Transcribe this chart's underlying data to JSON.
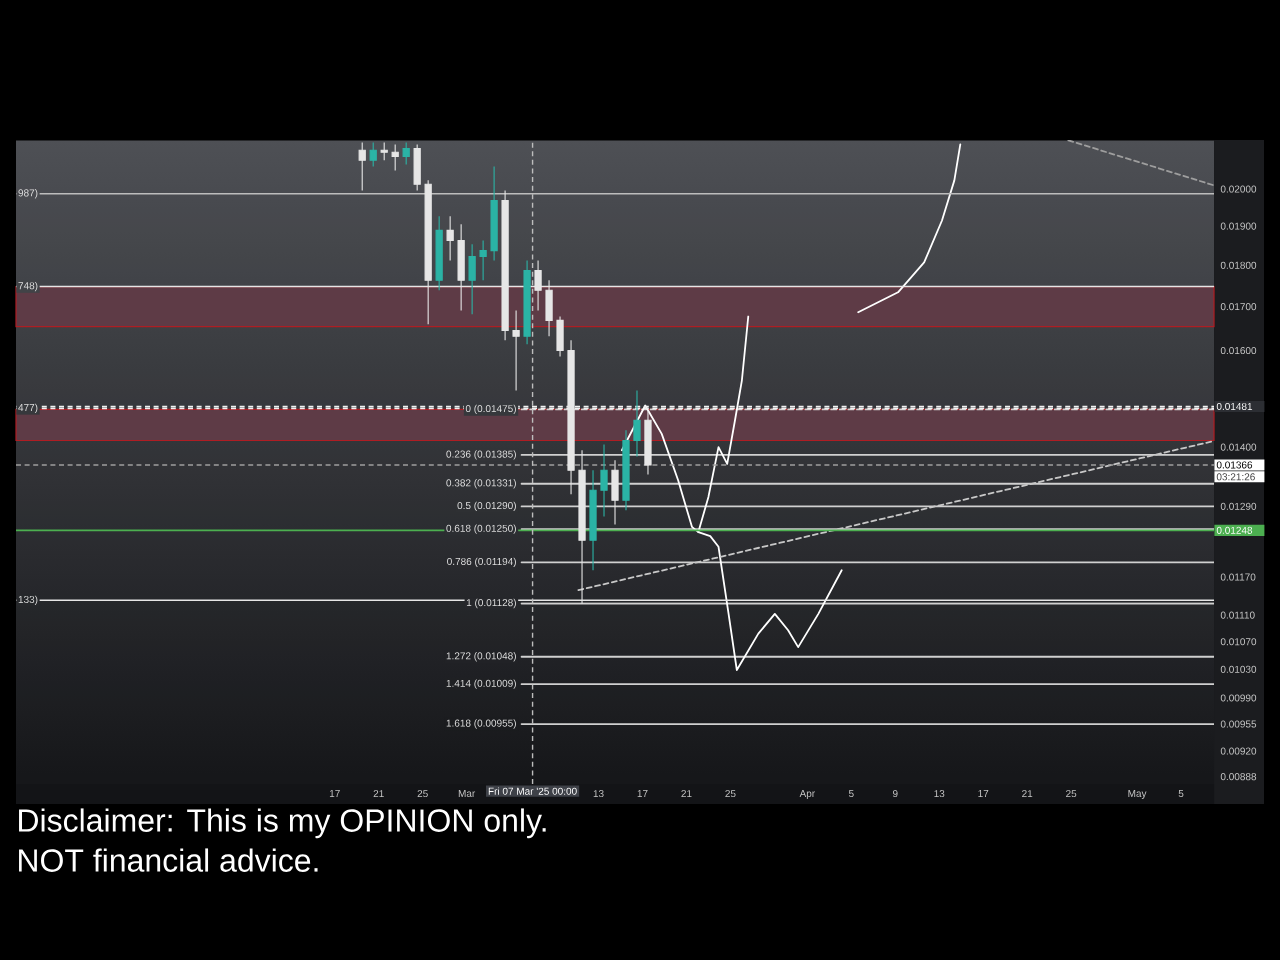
{
  "chart_data": {
    "type": "candlestick",
    "x": [
      "2025-02-19T12:00",
      "2025-02-20T12:00",
      "2025-02-21T12:00",
      "2025-02-22T12:00",
      "2025-02-23T12:00",
      "2025-02-24T12:00",
      "2025-02-25T12:00",
      "2025-02-26T12:00",
      "2025-02-27T12:00",
      "2025-02-28T12:00",
      "2025-03-01T12:00",
      "2025-03-02T12:00",
      "2025-03-03T12:00",
      "2025-03-04T12:00",
      "2025-03-05T12:00",
      "2025-03-06T12:00",
      "2025-03-07T12:00",
      "2025-03-08T12:00",
      "2025-03-09T12:00",
      "2025-03-10T12:00",
      "2025-03-11T12:00",
      "2025-03-12T12:00",
      "2025-03-13T12:00",
      "2025-03-14T12:00",
      "2025-03-15T12:00",
      "2025-03-16T12:00",
      "2025-03-17T12:00"
    ],
    "ohlc": [
      [
        0.0211,
        0.02133,
        0.01996,
        0.02081
      ],
      [
        0.02081,
        0.02133,
        0.02063,
        0.0211
      ],
      [
        0.0211,
        0.02133,
        0.02081,
        0.02104
      ],
      [
        0.02104,
        0.02127,
        0.02052,
        0.02092
      ],
      [
        0.02092,
        0.02133,
        0.02069,
        0.02115
      ],
      [
        0.02115,
        0.02127,
        0.01996,
        0.02013
      ],
      [
        0.02013,
        0.02024,
        0.01659,
        0.01763
      ],
      [
        0.01763,
        0.01926,
        0.01739,
        0.01889
      ],
      [
        0.01889,
        0.01926,
        0.01812,
        0.01863
      ],
      [
        0.01863,
        0.01905,
        0.01691,
        0.01763
      ],
      [
        0.01763,
        0.01853,
        0.01682,
        0.01822
      ],
      [
        0.01822,
        0.01863,
        0.01763,
        0.01837
      ],
      [
        0.01837,
        0.02063,
        0.01812,
        0.01969
      ],
      [
        0.01969,
        0.01996,
        0.01623,
        0.01645
      ],
      [
        0.01645,
        0.01691,
        0.01514,
        0.01632
      ],
      [
        0.01632,
        0.01812,
        0.01614,
        0.01787
      ],
      [
        0.01787,
        0.01812,
        0.01691,
        0.01739
      ],
      [
        0.01739,
        0.01763,
        0.01632,
        0.01668
      ],
      [
        0.01668,
        0.01677,
        0.01587,
        0.016
      ],
      [
        0.016,
        0.01623,
        0.01312,
        0.01356
      ],
      [
        0.01356,
        0.01394,
        0.01128,
        0.01231
      ],
      [
        0.01231,
        0.01356,
        0.01181,
        0.01319
      ],
      [
        0.01319,
        0.01405,
        0.01272,
        0.01356
      ],
      [
        0.01356,
        0.01375,
        0.01258,
        0.01301
      ],
      [
        0.01301,
        0.01433,
        0.01283,
        0.01413
      ],
      [
        0.01413,
        0.01514,
        0.01382,
        0.01453
      ],
      [
        0.01453,
        0.01473,
        0.01348,
        0.01366
      ]
    ],
    "colors": [
      "#e6e6e6",
      "#2bb3a5",
      "#e6e6e6",
      "#e6e6e6",
      "#2bb3a5",
      "#e6e6e6",
      "#e6e6e6",
      "#2bb3a5",
      "#e6e6e6",
      "#e6e6e6",
      "#2bb3a5",
      "#2bb3a5",
      "#2bb3a5",
      "#e6e6e6",
      "#e6e6e6",
      "#2bb3a5",
      "#e6e6e6",
      "#e6e6e6",
      "#e6e6e6",
      "#e6e6e6",
      "#e6e6e6",
      "#2bb3a5",
      "#2bb3a5",
      "#e6e6e6",
      "#2bb3a5",
      "#2bb3a5",
      "#e6e6e6"
    ],
    "series": [
      {
        "type": "line",
        "name": "0 (0.01475)",
        "color": "#d0d0d0",
        "line_style": "dashed",
        "x": [
          "2025-03-06",
          "2025-05-08"
        ],
        "values": [
          0.01475,
          0.01475
        ]
      },
      {
        "type": "line",
        "name": "0.236 (0.01385)",
        "color": "#d0d0d0",
        "x": [
          "2025-03-06",
          "2025-05-08"
        ],
        "values": [
          0.01385,
          0.01385
        ]
      },
      {
        "type": "line",
        "name": "0.382 (0.01331)",
        "color": "#d0d0d0",
        "x": [
          "2025-03-06",
          "2025-05-08"
        ],
        "values": [
          0.01331,
          0.01331
        ]
      },
      {
        "type": "line",
        "name": "0.5 (0.01290)",
        "color": "#d0d0d0",
        "x": [
          "2025-03-06",
          "2025-05-08"
        ],
        "values": [
          0.0129,
          0.0129
        ]
      },
      {
        "type": "line",
        "name": "0.618 (0.01250)",
        "color": "#d0d0d0",
        "x": [
          "2025-03-06",
          "2025-05-08"
        ],
        "values": [
          0.0125,
          0.0125
        ]
      },
      {
        "type": "line",
        "name": "0.786 (0.01194)",
        "color": "#d0d0d0",
        "x": [
          "2025-03-06",
          "2025-05-08"
        ],
        "values": [
          0.01194,
          0.01194
        ]
      },
      {
        "type": "line",
        "name": "1 (0.01128)",
        "color": "#d0d0d0",
        "x": [
          "2025-03-06",
          "2025-05-08"
        ],
        "values": [
          0.01128,
          0.01128
        ]
      },
      {
        "type": "line",
        "name": "1.272 (0.01048)",
        "color": "#d0d0d0",
        "x": [
          "2025-03-06",
          "2025-05-08"
        ],
        "values": [
          0.01048,
          0.01048
        ]
      },
      {
        "type": "line",
        "name": "1.414 (0.01009)",
        "color": "#d0d0d0",
        "x": [
          "2025-03-06",
          "2025-05-08"
        ],
        "values": [
          0.01009,
          0.01009
        ]
      },
      {
        "type": "line",
        "name": "1.618 (0.00955)",
        "color": "#d0d0d0",
        "x": [
          "2025-03-06",
          "2025-05-08"
        ],
        "values": [
          0.00955,
          0.00955
        ]
      },
      {
        "type": "line",
        "color": "#ffffff",
        "x": [
          "2025-03-15T03:00",
          "2025-03-17T06:00",
          "2025-03-18T18:00",
          "2025-03-20T06:00",
          "2025-03-21T12:00",
          "2025-03-22T02:00",
          "2025-03-23T00:00",
          "2025-03-23T22:00",
          "2025-03-24T17:00",
          "2025-03-25T10:00",
          "2025-03-26T01:00",
          "2025-03-26T15:00"
        ],
        "values": [
          0.01394,
          0.01483,
          0.01426,
          0.01337,
          0.01254,
          0.01245,
          0.01307,
          0.014,
          0.01368,
          0.01453,
          0.01535,
          0.01677
        ]
      },
      {
        "type": "line",
        "color": "#ffffff",
        "x": [
          "2025-03-22T02:00",
          "2025-03-23T04:00",
          "2025-03-23T22:00",
          "2025-03-24T20:00",
          "2025-03-25T14:00",
          "2025-03-27T13:00",
          "2025-03-29T01:00",
          "2025-03-30T06:00",
          "2025-03-31T04:00",
          "2025-04-02T00:00",
          "2025-04-04T03:00"
        ],
        "values": [
          0.01245,
          0.01238,
          0.0122,
          0.01112,
          0.01029,
          0.01082,
          0.01112,
          0.01087,
          0.01062,
          0.01112,
          0.01181
        ]
      },
      {
        "type": "line",
        "color": "#ffffff",
        "x": [
          "2025-04-05T15:00",
          "2025-04-09T06:00",
          "2025-04-11T15:00",
          "2025-04-13T06:00",
          "2025-04-14T09:00",
          "2025-04-14T22:00"
        ],
        "values": [
          0.01687,
          0.01734,
          0.01807,
          0.01915,
          0.02024,
          0.02127
        ]
      },
      {
        "type": "line",
        "color": "#c8c8c8",
        "line_style": "dashed",
        "x": [
          "2025-03-11T04:00",
          "2025-05-08"
        ],
        "values": [
          0.01149,
          0.01412
        ]
      },
      {
        "type": "line",
        "color": "#9e9e9e",
        "line_style": "dashed",
        "x": [
          "2025-04-24T18:00",
          "2025-05-08"
        ],
        "values": [
          0.02139,
          0.0201
        ]
      }
    ],
    "xlim": [
      "2025-01-19",
      "2025-05-08"
    ],
    "xticks": [
      {
        "value": "2025-02-17",
        "label": "17"
      },
      {
        "value": "2025-02-21",
        "label": "21"
      },
      {
        "value": "2025-02-25",
        "label": "25"
      },
      {
        "value": "2025-03-01",
        "label": "Mar"
      },
      {
        "value": "2025-03-13",
        "label": "13"
      },
      {
        "value": "2025-03-17",
        "label": "17"
      },
      {
        "value": "2025-03-21",
        "label": "21"
      },
      {
        "value": "2025-03-25",
        "label": "25"
      },
      {
        "value": "2025-04-01",
        "label": "Apr"
      },
      {
        "value": "2025-04-05",
        "label": "5"
      },
      {
        "value": "2025-04-09",
        "label": "9"
      },
      {
        "value": "2025-04-13",
        "label": "13"
      },
      {
        "value": "2025-04-17",
        "label": "17"
      },
      {
        "value": "2025-04-21",
        "label": "21"
      },
      {
        "value": "2025-04-25",
        "label": "25"
      },
      {
        "value": "2025-05-01",
        "label": "May"
      },
      {
        "value": "2025-05-05",
        "label": "5"
      }
    ],
    "ylim": [
      0.00879,
      0.0214
    ],
    "yticks": [
      {
        "value": 0.02,
        "label": "0.02000"
      },
      {
        "value": 0.019,
        "label": "0.01900"
      },
      {
        "value": 0.018,
        "label": "0.01800"
      },
      {
        "value": 0.017,
        "label": "0.01700"
      },
      {
        "value": 0.016,
        "label": "0.01600"
      },
      {
        "value": 0.014,
        "label": "0.01400"
      },
      {
        "value": 0.0129,
        "label": "0.01290"
      },
      {
        "value": 0.0117,
        "label": "0.01170"
      },
      {
        "value": 0.0111,
        "label": "0.01110"
      },
      {
        "value": 0.0107,
        "label": "0.01070"
      },
      {
        "value": 0.0103,
        "label": "0.01030"
      },
      {
        "value": 0.0099,
        "label": "0.00990"
      },
      {
        "value": 0.00955,
        "label": "0.00955"
      },
      {
        "value": 0.0092,
        "label": "0.00920"
      },
      {
        "value": 0.00888,
        "label": "0.00888"
      }
    ],
    "log": "y",
    "ref_lines": [
      {
        "axis": "y",
        "value": 0.01987,
        "color": "#bdbdbd"
      },
      {
        "axis": "y",
        "value": 0.01748,
        "color": "#e6e6e6"
      },
      {
        "axis": "y",
        "value": 0.01477,
        "color": "#f2f2f2",
        "line_style": "dashed"
      },
      {
        "axis": "y",
        "value": 0.01133,
        "color": "#e6e6e6"
      },
      {
        "axis": "y",
        "value": 0.01481,
        "label": "0.01481",
        "color": "#f2f2f2",
        "line_style": "dashed"
      },
      {
        "axis": "y",
        "value": 0.01366,
        "label": "0.01366",
        "color": "#9e9e9e",
        "line_style": "dashed"
      },
      {
        "axis": "y",
        "value": 0.01248,
        "label": "0.01248",
        "color": "#4caf50"
      },
      {
        "axis": "x",
        "value": "2025-03-07T00:00",
        "label": "Fri 07 Mar '25 00:00",
        "color": "#bdbdbd",
        "line_style": "dashed"
      }
    ],
    "bands": [
      {
        "axis": "y",
        "from": 0.01654,
        "to": 0.01748,
        "color": "#5e3b46"
      },
      {
        "axis": "y",
        "from": 0.01413,
        "to": 0.01475,
        "color": "#5e3b46"
      }
    ],
    "annotations": [
      "Disclaimer: This is my OPINION only.",
      "NOT financial advice.",
      "03:21:26",
      {
        "text": "987)",
        "x": "2025-01-19",
        "y": 0.01987
      },
      {
        "text": "748)",
        "x": "2025-01-19",
        "y": 0.01748
      },
      {
        "text": "477)",
        "x": "2025-01-19",
        "y": 0.01477
      },
      {
        "text": "133)",
        "x": "2025-01-19",
        "y": 0.01133
      }
    ]
  }
}
